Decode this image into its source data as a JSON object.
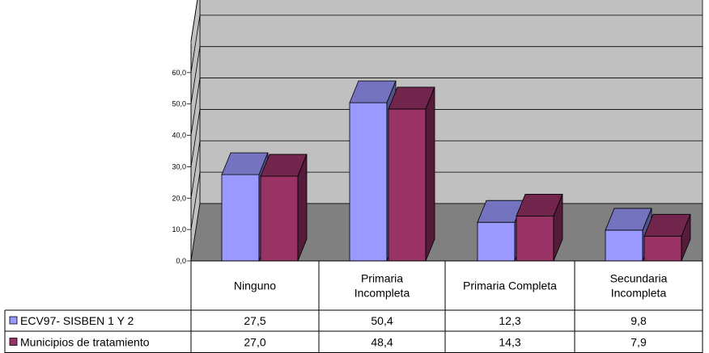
{
  "chart_data": {
    "type": "bar",
    "categories": [
      "Ninguno",
      "Primaria Incompleta",
      "Primaria Completa",
      "Secundaria Incompleta"
    ],
    "series": [
      {
        "name": "ECV97- SISBEN 1 Y 2",
        "values": [
          27.5,
          50.4,
          12.3,
          9.8
        ],
        "labels": [
          "27,5",
          "50,4",
          "12,3",
          "9,8"
        ],
        "color": "#9999ff"
      },
      {
        "name": "Municipios de tratamiento",
        "values": [
          27.0,
          48.4,
          14.3,
          7.9
        ],
        "labels": [
          "27,0",
          "48,4",
          "14,3",
          "7,9"
        ],
        "color": "#993366"
      }
    ],
    "y_ticks": [
      "0,0",
      "10,0",
      "20,0",
      "30,0",
      "40,0",
      "50,0",
      "60,0"
    ],
    "ylim": [
      0,
      70
    ],
    "grid": true,
    "legend": "data-table",
    "three_d": true
  }
}
